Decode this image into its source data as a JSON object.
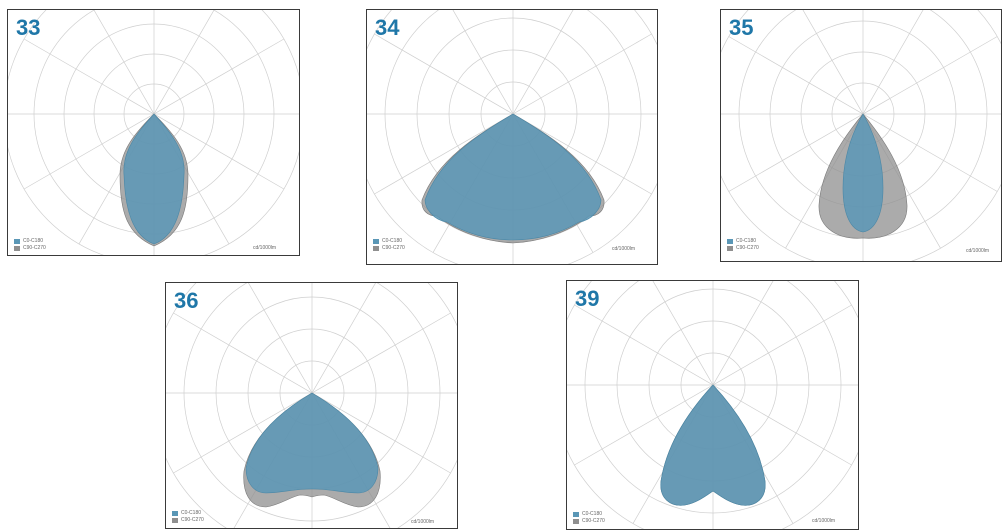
{
  "colors": {
    "c0": "#5a97b6",
    "c90": "#8f8f8f",
    "grid": "#cfcfcf",
    "title": "#1f77a8"
  },
  "legend": {
    "c0_label": "C0-C180",
    "c90_label": "C90-C270"
  },
  "unit_label": "cd/1000lm",
  "panels": [
    {
      "id": "33",
      "c0_shape": "narrow"
    },
    {
      "id": "34",
      "c0_shape": "wide"
    },
    {
      "id": "35",
      "c0_shape": "narrow-ellipse"
    },
    {
      "id": "36",
      "c0_shape": "wide-bat"
    },
    {
      "id": "39",
      "c0_shape": "medium"
    }
  ]
}
